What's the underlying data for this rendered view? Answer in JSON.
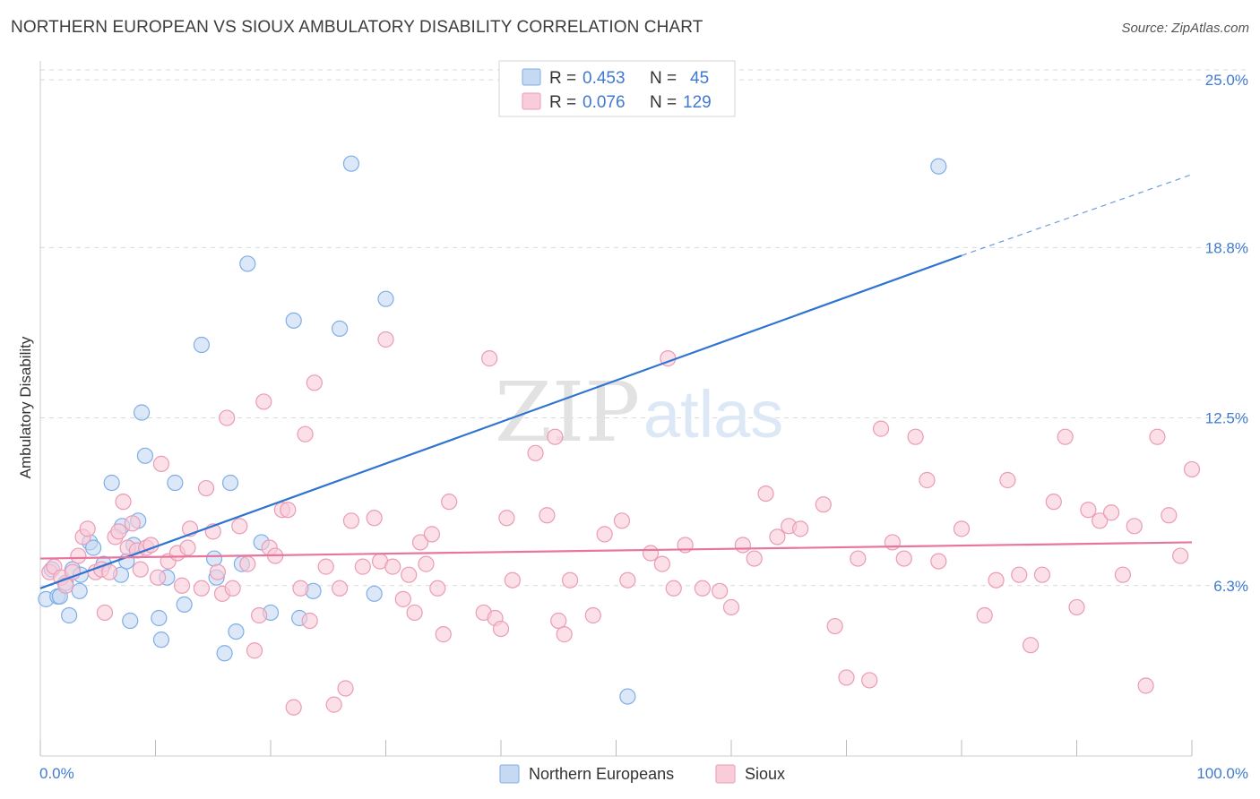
{
  "header": {
    "title": "NORTHERN EUROPEAN VS SIOUX AMBULATORY DISABILITY CORRELATION CHART",
    "source": "Source: ZipAtlas.com"
  },
  "watermark": {
    "zip": "ZIP",
    "atlas": "atlas"
  },
  "colors": {
    "blue_fill": "#c5d9f3",
    "blue_stroke": "#7faee6",
    "blue_line": "#2e74d0",
    "pink_fill": "#f8ccd9",
    "pink_stroke": "#eb9bb6",
    "pink_line": "#e8759c",
    "grid": "#d9d9d9",
    "label": "#3f7ad0"
  },
  "legend": {
    "r_label": "R =",
    "n_label": "N =",
    "rows": [
      {
        "r": "0.453",
        "n": "45",
        "color": "blue"
      },
      {
        "r": "0.076",
        "n": "129",
        "color": "pink"
      }
    ]
  },
  "chart_data": {
    "type": "scatter",
    "title": "NORTHERN EUROPEAN VS SIOUX AMBULATORY DISABILITY CORRELATION CHART",
    "xlabel": "",
    "ylabel": "Ambulatory Disability",
    "xlim": [
      0,
      100
    ],
    "ylim": [
      0,
      25.5
    ],
    "x_tick_labels": {
      "left": "0.0%",
      "right": "100.0%"
    },
    "y_ticks": [
      {
        "value": 6.3,
        "label": "6.3%"
      },
      {
        "value": 12.5,
        "label": "12.5%"
      },
      {
        "value": 18.8,
        "label": "18.8%"
      },
      {
        "value": 25.0,
        "label": "25.0%"
      }
    ],
    "grid": "horizontal dashed",
    "legend_position": "top-center",
    "series": [
      {
        "name": "Northern Europeans",
        "color": "blue",
        "trend": {
          "x1": 0,
          "y1": 6.2,
          "x2": 80,
          "y2": 18.5,
          "dash_x2": 100,
          "dash_y2": 21.5
        },
        "points": [
          [
            0.5,
            5.8
          ],
          [
            1.0,
            6.9
          ],
          [
            1.5,
            5.9
          ],
          [
            1.7,
            5.9
          ],
          [
            2.2,
            6.4
          ],
          [
            2.5,
            5.2
          ],
          [
            2.8,
            6.9
          ],
          [
            3.4,
            6.1
          ],
          [
            3.5,
            6.7
          ],
          [
            4.3,
            7.9
          ],
          [
            4.6,
            7.7
          ],
          [
            5.5,
            7.1
          ],
          [
            6.2,
            10.1
          ],
          [
            7.0,
            6.7
          ],
          [
            7.1,
            8.5
          ],
          [
            7.5,
            7.2
          ],
          [
            7.8,
            5.0
          ],
          [
            8.1,
            7.8
          ],
          [
            8.5,
            8.7
          ],
          [
            8.8,
            12.7
          ],
          [
            9.1,
            11.1
          ],
          [
            10.3,
            5.1
          ],
          [
            10.5,
            4.3
          ],
          [
            11.0,
            6.6
          ],
          [
            11.7,
            10.1
          ],
          [
            12.5,
            5.6
          ],
          [
            14.0,
            15.2
          ],
          [
            15.1,
            7.3
          ],
          [
            15.3,
            6.6
          ],
          [
            16.0,
            3.8
          ],
          [
            16.5,
            10.1
          ],
          [
            17.0,
            4.6
          ],
          [
            17.5,
            7.1
          ],
          [
            18.0,
            18.2
          ],
          [
            19.2,
            7.9
          ],
          [
            20.0,
            5.3
          ],
          [
            22.0,
            16.1
          ],
          [
            22.5,
            5.1
          ],
          [
            23.7,
            6.1
          ],
          [
            26.0,
            15.8
          ],
          [
            27.0,
            21.9
          ],
          [
            29.0,
            6.0
          ],
          [
            30.0,
            16.9
          ],
          [
            51.0,
            2.2
          ],
          [
            78.0,
            21.8
          ]
        ]
      },
      {
        "name": "Sioux",
        "color": "pink",
        "trend": {
          "x1": 0,
          "y1": 7.3,
          "x2": 100,
          "y2": 7.9
        },
        "points": [
          [
            0.8,
            6.8
          ],
          [
            1.2,
            7.0
          ],
          [
            1.8,
            6.6
          ],
          [
            2.2,
            6.3
          ],
          [
            2.8,
            6.8
          ],
          [
            3.3,
            7.4
          ],
          [
            3.7,
            8.1
          ],
          [
            4.1,
            8.4
          ],
          [
            4.8,
            6.8
          ],
          [
            5.3,
            6.9
          ],
          [
            5.6,
            5.3
          ],
          [
            6.0,
            6.8
          ],
          [
            6.5,
            8.1
          ],
          [
            6.8,
            8.3
          ],
          [
            7.2,
            9.4
          ],
          [
            7.6,
            7.7
          ],
          [
            8.0,
            8.6
          ],
          [
            8.4,
            7.6
          ],
          [
            8.7,
            6.9
          ],
          [
            9.2,
            7.7
          ],
          [
            9.6,
            7.8
          ],
          [
            10.2,
            6.6
          ],
          [
            10.5,
            10.8
          ],
          [
            11.1,
            7.2
          ],
          [
            11.9,
            7.5
          ],
          [
            12.3,
            6.3
          ],
          [
            12.8,
            7.7
          ],
          [
            13.0,
            8.4
          ],
          [
            14.0,
            6.2
          ],
          [
            14.4,
            9.9
          ],
          [
            15.0,
            8.3
          ],
          [
            15.4,
            6.8
          ],
          [
            15.8,
            6.0
          ],
          [
            16.2,
            12.5
          ],
          [
            16.7,
            6.2
          ],
          [
            17.3,
            8.5
          ],
          [
            18.0,
            7.1
          ],
          [
            18.6,
            3.9
          ],
          [
            19.0,
            5.2
          ],
          [
            19.4,
            13.1
          ],
          [
            19.9,
            7.7
          ],
          [
            20.4,
            7.4
          ],
          [
            21.0,
            9.1
          ],
          [
            21.5,
            9.1
          ],
          [
            22.0,
            1.8
          ],
          [
            22.6,
            6.2
          ],
          [
            23.0,
            11.9
          ],
          [
            23.4,
            5.0
          ],
          [
            23.8,
            13.8
          ],
          [
            24.8,
            7.0
          ],
          [
            25.5,
            1.9
          ],
          [
            26.0,
            6.2
          ],
          [
            26.5,
            2.5
          ],
          [
            27.0,
            8.7
          ],
          [
            28.0,
            7.0
          ],
          [
            29.0,
            8.8
          ],
          [
            29.5,
            7.2
          ],
          [
            30.0,
            15.4
          ],
          [
            30.6,
            7.0
          ],
          [
            31.5,
            5.8
          ],
          [
            32.0,
            6.7
          ],
          [
            32.5,
            5.3
          ],
          [
            33.0,
            7.9
          ],
          [
            33.5,
            7.1
          ],
          [
            34.0,
            8.2
          ],
          [
            34.5,
            6.2
          ],
          [
            35.0,
            4.5
          ],
          [
            35.5,
            9.4
          ],
          [
            38.5,
            5.3
          ],
          [
            39.0,
            14.7
          ],
          [
            39.5,
            5.1
          ],
          [
            40.0,
            4.7
          ],
          [
            40.5,
            8.8
          ],
          [
            41.0,
            6.5
          ],
          [
            43.0,
            11.2
          ],
          [
            44.0,
            8.9
          ],
          [
            44.7,
            11.8
          ],
          [
            45.0,
            5.0
          ],
          [
            45.5,
            4.5
          ],
          [
            46.0,
            6.5
          ],
          [
            48.0,
            5.2
          ],
          [
            49.0,
            8.2
          ],
          [
            50.5,
            8.7
          ],
          [
            51.0,
            6.5
          ],
          [
            53.0,
            7.5
          ],
          [
            54.0,
            7.1
          ],
          [
            54.5,
            14.7
          ],
          [
            55.0,
            6.2
          ],
          [
            56.0,
            7.8
          ],
          [
            57.5,
            6.2
          ],
          [
            59.0,
            6.1
          ],
          [
            60.0,
            5.5
          ],
          [
            61.0,
            7.8
          ],
          [
            62.0,
            7.3
          ],
          [
            63.0,
            9.7
          ],
          [
            64.0,
            8.1
          ],
          [
            65.0,
            8.5
          ],
          [
            66.0,
            8.4
          ],
          [
            68.0,
            9.3
          ],
          [
            69.0,
            4.8
          ],
          [
            70.0,
            2.9
          ],
          [
            71.0,
            7.3
          ],
          [
            72.0,
            2.8
          ],
          [
            73.0,
            12.1
          ],
          [
            74.0,
            7.9
          ],
          [
            75.0,
            7.3
          ],
          [
            76.0,
            11.8
          ],
          [
            77.0,
            10.2
          ],
          [
            78.0,
            7.2
          ],
          [
            80.0,
            8.4
          ],
          [
            82.0,
            5.2
          ],
          [
            83.0,
            6.5
          ],
          [
            84.0,
            10.2
          ],
          [
            85.0,
            6.7
          ],
          [
            86.0,
            4.1
          ],
          [
            87.0,
            6.7
          ],
          [
            88.0,
            9.4
          ],
          [
            89.0,
            11.8
          ],
          [
            90.0,
            5.5
          ],
          [
            91.0,
            9.1
          ],
          [
            92.0,
            8.7
          ],
          [
            93.0,
            9.0
          ],
          [
            94.0,
            6.7
          ],
          [
            95.0,
            8.5
          ],
          [
            96.0,
            2.6
          ],
          [
            97.0,
            11.8
          ],
          [
            98.0,
            8.9
          ],
          [
            99.0,
            7.4
          ],
          [
            100.0,
            10.6
          ]
        ]
      }
    ]
  }
}
